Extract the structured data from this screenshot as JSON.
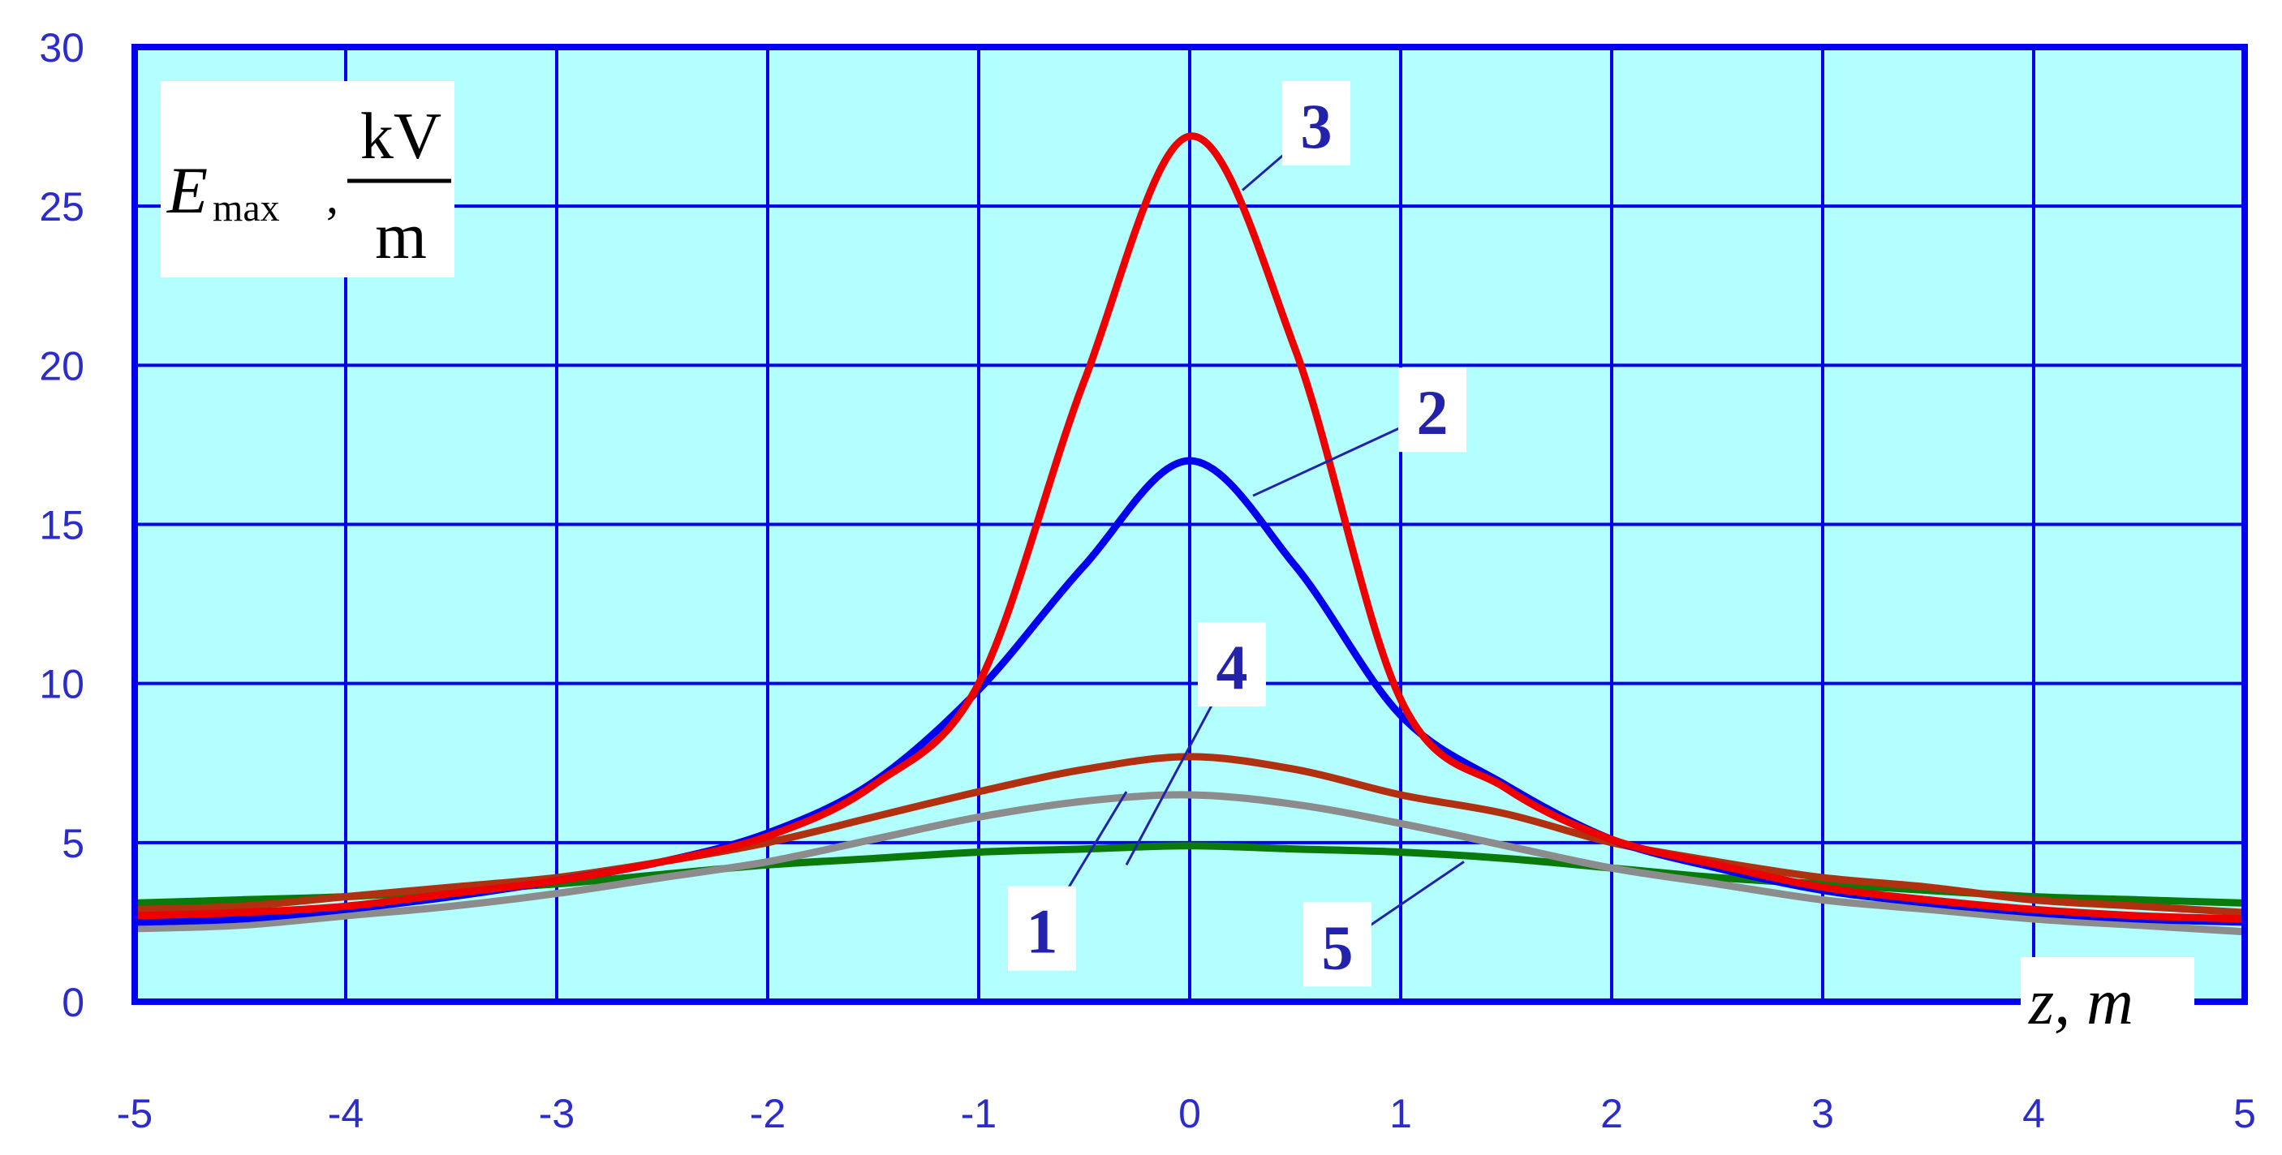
{
  "chart_data": {
    "type": "line",
    "title": "",
    "ylabel": {
      "symbol": "E",
      "subscript": "max",
      "separator": ",",
      "unit_numerator": "kV",
      "unit_denominator": "m"
    },
    "xlabel": "z, m",
    "xlim": [
      -5,
      5
    ],
    "ylim": [
      0,
      30
    ],
    "x_ticks": [
      -5,
      -4,
      -3,
      -2,
      -1,
      0,
      1,
      2,
      3,
      4,
      5
    ],
    "y_ticks": [
      0,
      5,
      10,
      15,
      20,
      25,
      30
    ],
    "grid": true,
    "background_color": "#b3ffff",
    "grid_color": "#0000ee",
    "x": [
      -5,
      -4.5,
      -4,
      -3.5,
      -3,
      -2.5,
      -2,
      -1.5,
      -1,
      -0.5,
      0,
      0.5,
      1,
      1.5,
      2,
      2.5,
      3,
      3.5,
      4,
      4.5,
      5
    ],
    "series": [
      {
        "name": "1",
        "color": "#0a7a0a",
        "values": [
          3.1,
          3.2,
          3.3,
          3.5,
          3.7,
          4.0,
          4.3,
          4.5,
          4.7,
          4.8,
          4.9,
          4.8,
          4.7,
          4.5,
          4.2,
          3.9,
          3.7,
          3.5,
          3.3,
          3.2,
          3.1
        ]
      },
      {
        "name": "2",
        "color": "#0000ee",
        "values": [
          2.5,
          2.6,
          2.9,
          3.3,
          3.8,
          4.4,
          5.3,
          6.9,
          9.8,
          13.7,
          17.0,
          13.7,
          9.0,
          6.8,
          5.1,
          4.2,
          3.5,
          3.1,
          2.8,
          2.6,
          2.5
        ]
      },
      {
        "name": "3",
        "color": "#ee0000",
        "values": [
          2.7,
          2.8,
          3.0,
          3.4,
          3.8,
          4.4,
          5.2,
          6.8,
          10.0,
          19.5,
          27.2,
          20.5,
          9.5,
          6.7,
          5.1,
          4.3,
          3.6,
          3.2,
          2.9,
          2.7,
          2.6
        ]
      },
      {
        "name": "4",
        "color": "#b03010",
        "values": [
          2.9,
          3.0,
          3.3,
          3.6,
          3.9,
          4.4,
          5.0,
          5.8,
          6.6,
          7.3,
          7.7,
          7.3,
          6.5,
          5.9,
          5.0,
          4.4,
          3.9,
          3.6,
          3.2,
          3.0,
          2.8
        ]
      },
      {
        "name": "5",
        "color": "#8c8c8c",
        "values": [
          2.3,
          2.4,
          2.7,
          3.0,
          3.4,
          3.9,
          4.4,
          5.1,
          5.8,
          6.3,
          6.5,
          6.2,
          5.6,
          4.9,
          4.2,
          3.7,
          3.2,
          2.9,
          2.6,
          2.4,
          2.2
        ]
      }
    ],
    "annotations": [
      {
        "text": "3",
        "series": "3",
        "label_x": 0.6,
        "label_y": 27.5,
        "point_x": 0.25,
        "point_y": 25.5
      },
      {
        "text": "2",
        "series": "2",
        "label_x": 1.15,
        "label_y": 18.5,
        "point_x": 0.3,
        "point_y": 15.9
      },
      {
        "text": "4",
        "series": "4",
        "label_x": 0.2,
        "label_y": 10.5,
        "point_x": -0.3,
        "point_y": 4.3
      },
      {
        "text": "1",
        "series": "1",
        "label_x": -0.7,
        "label_y": 2.2,
        "point_x": -0.3,
        "point_y": 6.6
      },
      {
        "text": "5",
        "series": "5",
        "label_x": 0.7,
        "label_y": 1.7,
        "point_x": 1.3,
        "point_y": 4.4
      }
    ]
  }
}
